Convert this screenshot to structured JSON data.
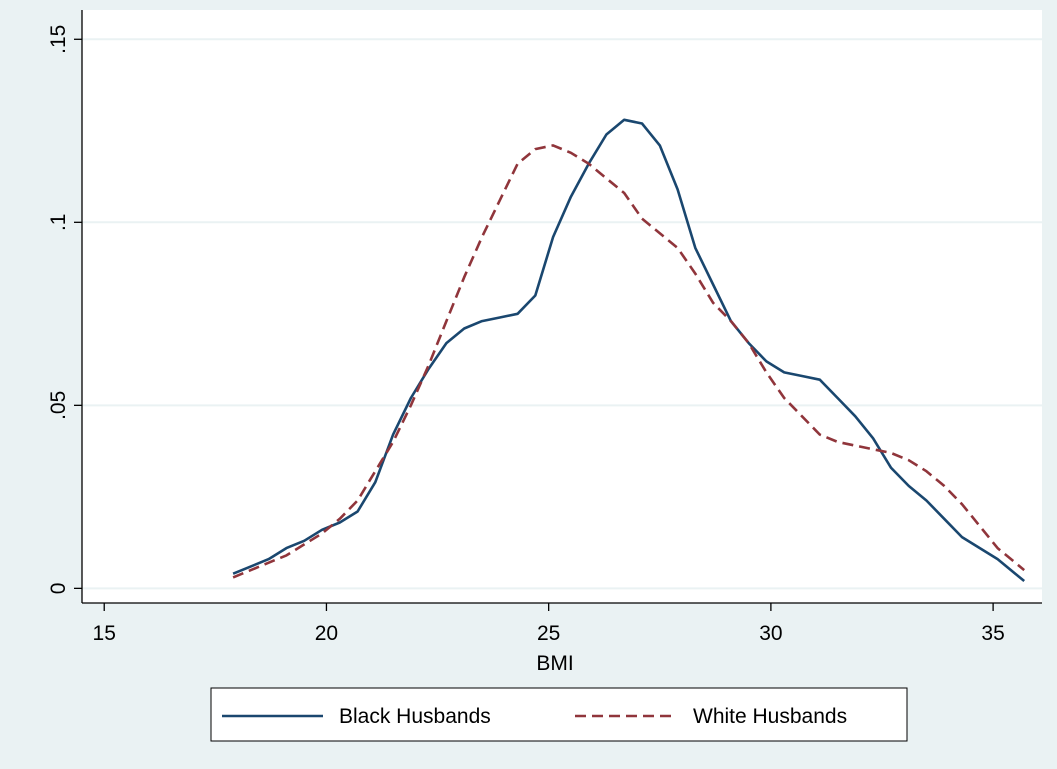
{
  "chart_data": {
    "type": "line",
    "title": "",
    "xlabel": "BMI",
    "ylabel": "",
    "xlim": [
      14.5,
      36.1
    ],
    "ylim": [
      -0.004,
      0.158
    ],
    "x_ticks": [
      15,
      20,
      25,
      30,
      35
    ],
    "x_tick_labels": [
      "15",
      "20",
      "25",
      "30",
      "35"
    ],
    "y_ticks": [
      0,
      0.05,
      0.1,
      0.15
    ],
    "y_tick_labels": [
      "0",
      ".05",
      ".1",
      ".15"
    ],
    "grid": "horizontal",
    "legend_position": "bottom",
    "series": [
      {
        "name": "Black Husbands",
        "color": "#1a476f",
        "style": "solid",
        "x": [
          17.9,
          18.3,
          18.7,
          19.1,
          19.5,
          19.9,
          20.3,
          20.7,
          21.1,
          21.5,
          21.9,
          22.3,
          22.7,
          23.1,
          23.5,
          23.9,
          24.3,
          24.7,
          25.1,
          25.5,
          25.9,
          26.3,
          26.7,
          27.1,
          27.5,
          27.9,
          28.3,
          28.7,
          29.1,
          29.5,
          29.9,
          30.3,
          30.7,
          31.1,
          31.5,
          31.9,
          32.3,
          32.7,
          33.1,
          33.5,
          33.9,
          34.3,
          34.7,
          35.1,
          35.5,
          35.7
        ],
        "y": [
          0.004,
          0.006,
          0.008,
          0.011,
          0.013,
          0.016,
          0.018,
          0.021,
          0.029,
          0.042,
          0.052,
          0.06,
          0.067,
          0.071,
          0.073,
          0.074,
          0.075,
          0.08,
          0.096,
          0.107,
          0.116,
          0.124,
          0.128,
          0.127,
          0.121,
          0.109,
          0.093,
          0.083,
          0.073,
          0.067,
          0.062,
          0.059,
          0.058,
          0.057,
          0.052,
          0.047,
          0.041,
          0.033,
          0.028,
          0.024,
          0.019,
          0.014,
          0.011,
          0.008,
          0.004,
          0.002
        ]
      },
      {
        "name": "White Husbands",
        "color": "#90353b",
        "style": "dashed",
        "x": [
          17.9,
          18.3,
          18.7,
          19.1,
          19.5,
          19.9,
          20.3,
          20.7,
          21.1,
          21.5,
          21.9,
          22.3,
          22.7,
          23.1,
          23.5,
          23.9,
          24.3,
          24.7,
          25.1,
          25.5,
          25.9,
          26.3,
          26.7,
          27.1,
          27.5,
          27.9,
          28.3,
          28.7,
          29.1,
          29.5,
          29.9,
          30.3,
          30.7,
          31.1,
          31.5,
          31.9,
          32.3,
          32.7,
          33.1,
          33.5,
          33.9,
          34.3,
          34.7,
          35.1,
          35.5,
          35.7
        ],
        "y": [
          0.003,
          0.005,
          0.007,
          0.009,
          0.012,
          0.015,
          0.019,
          0.024,
          0.032,
          0.04,
          0.05,
          0.061,
          0.073,
          0.085,
          0.096,
          0.106,
          0.116,
          0.12,
          0.121,
          0.119,
          0.116,
          0.112,
          0.108,
          0.101,
          0.097,
          0.093,
          0.086,
          0.078,
          0.073,
          0.067,
          0.059,
          0.052,
          0.047,
          0.042,
          0.04,
          0.039,
          0.038,
          0.037,
          0.035,
          0.032,
          0.028,
          0.023,
          0.017,
          0.011,
          0.007,
          0.005
        ]
      }
    ]
  },
  "colors": {
    "outer_background": "#eaf2f3",
    "plot_background": "#ffffff",
    "gridline": "#eaf2f3",
    "axis": "#000000"
  }
}
